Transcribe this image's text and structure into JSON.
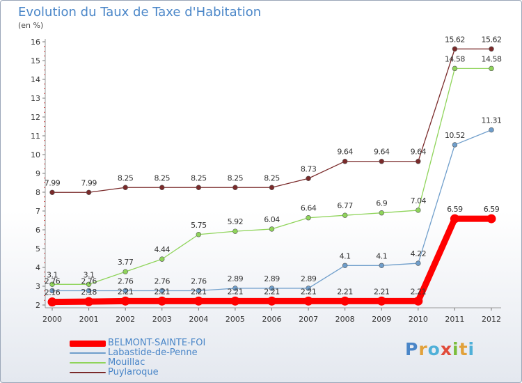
{
  "title": "Evolution du Taux de Taxe d'Habitation",
  "unit": "(en %)",
  "logo": {
    "letters": [
      {
        "char": "P",
        "color": "#4a86c8"
      },
      {
        "char": "r",
        "color": "#e2a13a"
      },
      {
        "char": "o",
        "color": "#4fb0d8"
      },
      {
        "char": "x",
        "color": "#e14b3a"
      },
      {
        "char": "i",
        "color": "#7bbd3c"
      },
      {
        "char": "t",
        "color": "#e2a13a"
      },
      {
        "char": "i",
        "color": "#4fb0d8"
      }
    ]
  },
  "chart_data": {
    "type": "line",
    "title": "Evolution du Taux de Taxe d'Habitation",
    "ylabel": "(en %)",
    "xlabel": "",
    "x": [
      "2000",
      "2001",
      "2002",
      "2003",
      "2004",
      "2005",
      "2006",
      "2007",
      "2008",
      "2009",
      "2010",
      "2011",
      "2012"
    ],
    "ylim": [
      2,
      16
    ],
    "yticks": [
      2,
      3,
      4,
      5,
      6,
      7,
      8,
      9,
      10,
      11,
      12,
      13,
      14,
      15,
      16
    ],
    "grid": false,
    "legend_position": "bottom-left",
    "series": [
      {
        "name": "BELMONT-SAINTE-FOI",
        "color": "#ff0000",
        "values": [
          2.16,
          2.18,
          2.21,
          2.21,
          2.21,
          2.21,
          2.21,
          2.21,
          2.21,
          2.21,
          2.21,
          6.59,
          6.59
        ],
        "labels": [
          "2.16",
          "2.18",
          "2.21",
          "2.21",
          "2.21",
          "2.21",
          "2.21",
          "2.21",
          "2.21",
          "2.21",
          "2.21",
          "6.59",
          "6.59"
        ]
      },
      {
        "name": "Labastide-de-Penne",
        "color": "#6f9ecb",
        "values": [
          2.76,
          2.76,
          2.76,
          2.76,
          2.76,
          2.89,
          2.89,
          2.89,
          4.1,
          4.1,
          4.22,
          10.52,
          11.31
        ],
        "labels": [
          "2.76",
          "2.76",
          "2.76",
          "2.76",
          "2.76",
          "2.89",
          "2.89",
          "2.89",
          "4.1",
          "4.1",
          "4.22",
          "10.52",
          "11.31"
        ]
      },
      {
        "name": "Mouillac",
        "color": "#8fd45a",
        "values": [
          3.1,
          3.1,
          3.77,
          4.44,
          5.75,
          5.92,
          6.04,
          6.64,
          6.77,
          6.9,
          7.04,
          14.58,
          14.58
        ],
        "labels": [
          "3.1",
          "3.1",
          "3.77",
          "4.44",
          "5.75",
          "5.92",
          "6.04",
          "6.64",
          "6.77",
          "6.9",
          "7.04",
          "14.58",
          "14.58"
        ]
      },
      {
        "name": "Puylaroque",
        "color": "#7a2a2a",
        "values": [
          7.99,
          7.99,
          8.25,
          8.25,
          8.25,
          8.25,
          8.25,
          8.73,
          9.64,
          9.64,
          9.64,
          15.62,
          15.62
        ],
        "labels": [
          "7.99",
          "7.99",
          "8.25",
          "8.25",
          "8.25",
          "8.25",
          "8.25",
          "8.73",
          "9.64",
          "9.64",
          "9.64",
          "15.62",
          "15.62"
        ]
      }
    ]
  }
}
